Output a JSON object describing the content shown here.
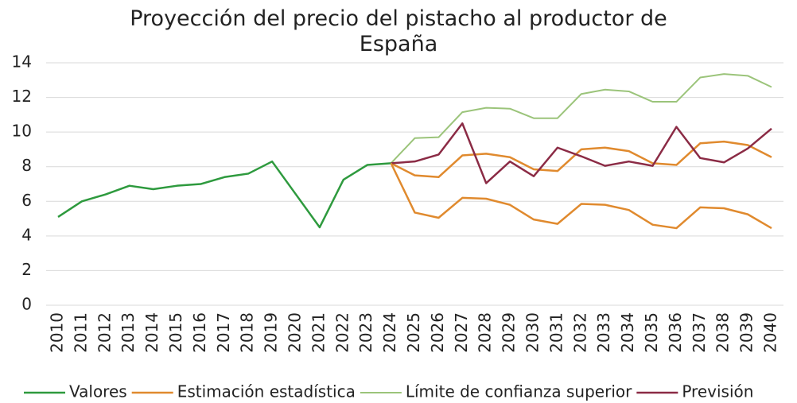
{
  "chart_data": {
    "type": "line",
    "title": "Proyección del precio del pistacho al productor de España",
    "categories": [
      "2010",
      "2011",
      "2012",
      "2013",
      "2014",
      "2015",
      "2016",
      "2017",
      "2018",
      "2019",
      "2020",
      "2021",
      "2022",
      "2023",
      "2024",
      "2025",
      "2026",
      "2027",
      "2028",
      "2029",
      "2030",
      "2031",
      "2032",
      "2033",
      "2034",
      "2035",
      "2036",
      "2037",
      "2038",
      "2039",
      "2040"
    ],
    "ylim": [
      0,
      14
    ],
    "yticks": [
      0,
      2,
      4,
      6,
      8,
      10,
      12,
      14
    ],
    "grid": true,
    "legend": "bottom",
    "series": [
      {
        "name": "Valores",
        "color": "#2e9a3e",
        "values": [
          5.1,
          6.0,
          6.4,
          6.9,
          6.7,
          6.9,
          7.0,
          7.4,
          7.6,
          8.3,
          6.4,
          4.5,
          7.25,
          8.1,
          8.2,
          null,
          null,
          null,
          null,
          null,
          null,
          null,
          null,
          null,
          null,
          null,
          null,
          null,
          null,
          null,
          null
        ]
      },
      {
        "name": "Estimación estadística",
        "color": "#e08a2e",
        "values": [
          null,
          null,
          null,
          null,
          null,
          null,
          null,
          null,
          null,
          null,
          null,
          null,
          null,
          null,
          8.2,
          7.5,
          7.4,
          8.65,
          8.75,
          8.55,
          7.85,
          7.75,
          9.0,
          9.1,
          8.9,
          8.2,
          8.1,
          9.35,
          9.45,
          9.25,
          8.55
        ]
      },
      {
        "name": "Límite de confianza superior",
        "color": "#9bc47a",
        "values": [
          null,
          null,
          null,
          null,
          null,
          null,
          null,
          null,
          null,
          null,
          null,
          null,
          null,
          null,
          8.2,
          9.65,
          9.7,
          11.15,
          11.4,
          11.35,
          10.8,
          10.8,
          12.2,
          12.45,
          12.35,
          11.75,
          11.75,
          13.15,
          13.35,
          13.25,
          12.6
        ]
      },
      {
        "name": "Previsión",
        "color": "#8b2b45",
        "values": [
          null,
          null,
          null,
          null,
          null,
          null,
          null,
          null,
          null,
          null,
          null,
          null,
          null,
          null,
          8.2,
          8.3,
          8.7,
          10.5,
          7.05,
          8.3,
          7.45,
          9.1,
          8.6,
          8.05,
          8.3,
          8.05,
          10.3,
          8.5,
          8.25,
          9.05,
          10.2
        ]
      },
      {
        "color": "#e08a2e",
        "values": [
          null,
          null,
          null,
          null,
          null,
          null,
          null,
          null,
          null,
          null,
          null,
          null,
          null,
          null,
          8.2,
          5.35,
          5.05,
          6.2,
          6.15,
          5.8,
          4.95,
          4.7,
          5.85,
          5.8,
          5.5,
          4.65,
          4.45,
          5.65,
          5.6,
          5.25,
          4.45
        ]
      }
    ]
  }
}
